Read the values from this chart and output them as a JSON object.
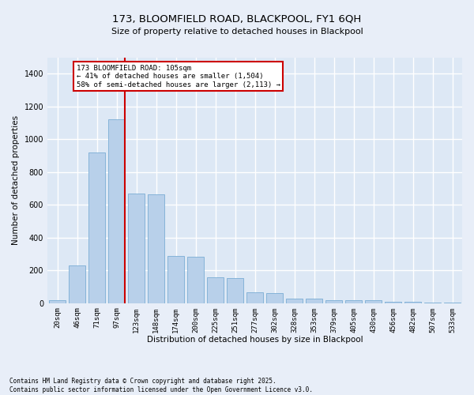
{
  "title_line1": "173, BLOOMFIELD ROAD, BLACKPOOL, FY1 6QH",
  "title_line2": "Size of property relative to detached houses in Blackpool",
  "xlabel": "Distribution of detached houses by size in Blackpool",
  "ylabel": "Number of detached properties",
  "footnote": "Contains HM Land Registry data © Crown copyright and database right 2025.\nContains public sector information licensed under the Open Government Licence v3.0.",
  "bar_color": "#b8d0ea",
  "bar_edge_color": "#7aadd4",
  "background_color": "#dde8f5",
  "grid_color": "#ffffff",
  "annotation_text": "173 BLOOMFIELD ROAD: 105sqm\n← 41% of detached houses are smaller (1,504)\n58% of semi-detached houses are larger (2,113) →",
  "annotation_box_facecolor": "#ffffff",
  "annotation_box_edgecolor": "#cc0000",
  "red_line_color": "#cc0000",
  "categories": [
    "20sqm",
    "46sqm",
    "71sqm",
    "97sqm",
    "123sqm",
    "148sqm",
    "174sqm",
    "200sqm",
    "225sqm",
    "251sqm",
    "277sqm",
    "302sqm",
    "328sqm",
    "353sqm",
    "379sqm",
    "405sqm",
    "430sqm",
    "456sqm",
    "482sqm",
    "507sqm",
    "533sqm"
  ],
  "values": [
    20,
    230,
    920,
    1120,
    670,
    665,
    290,
    285,
    160,
    155,
    65,
    62,
    28,
    26,
    18,
    17,
    16,
    9,
    8,
    4,
    3
  ],
  "ylim": [
    0,
    1500
  ],
  "yticks": [
    0,
    200,
    400,
    600,
    800,
    1000,
    1200,
    1400
  ],
  "fig_facecolor": "#e8eef8",
  "title1_fontsize": 9.5,
  "title2_fontsize": 8.0,
  "ylabel_fontsize": 7.5,
  "xlabel_fontsize": 7.5,
  "tick_fontsize": 6.5,
  "annot_fontsize": 6.5,
  "footnote_fontsize": 5.5
}
